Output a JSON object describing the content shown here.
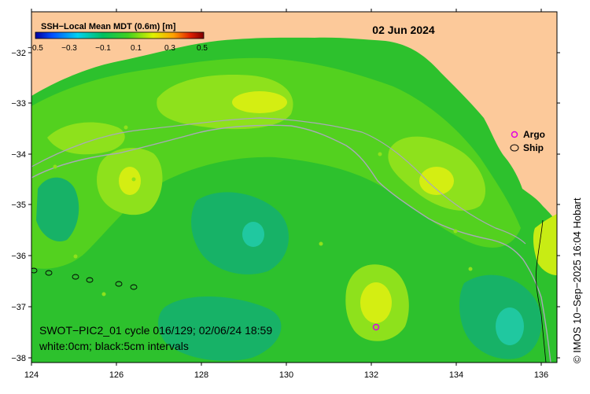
{
  "map": {
    "date": "02 Jun 2024",
    "colorbar": {
      "title": "SSH−Local Mean MDT (0.6m) [m]",
      "ticks": [
        "−0.5",
        "−0.3",
        "−0.1",
        "0.1",
        "0.3",
        "0.5"
      ],
      "min": -0.5,
      "max": 0.5
    },
    "y_axis": {
      "ticks": [
        "−32",
        "−33",
        "−34",
        "−35",
        "−36",
        "−37",
        "−38"
      ]
    },
    "x_axis": {
      "ticks": [
        "124",
        "126",
        "128",
        "130",
        "132",
        "134",
        "136"
      ]
    },
    "legend": {
      "argo": "Argo",
      "ship": "Ship"
    },
    "info": {
      "line1": "SWOT−PIC2_01 cycle 016/129; 02/06/24 18:59",
      "line2": "white:0cm; black:5cm intervals"
    },
    "credit": "© IMOS 10−Sep−2025 16:04 Hobart"
  },
  "colors": {
    "land": "#FCC99A",
    "ocean_base": "#2DC12D",
    "ocean_light": "#53D11F",
    "ocean_yellowgreen": "#8EE11C",
    "ocean_yellow": "#D4EE12",
    "ocean_teal": "#17B267",
    "ocean_cyan": "#20C8A0",
    "shelf_line": "#A9A9B9",
    "argo": "#E000E0"
  }
}
